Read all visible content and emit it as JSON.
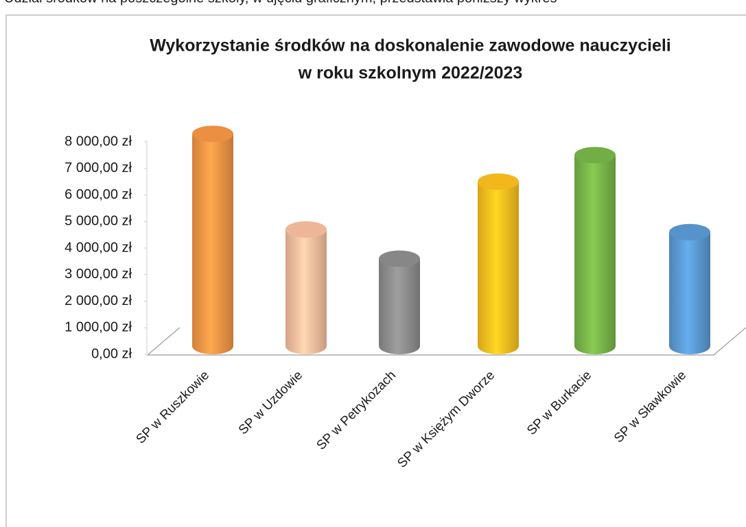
{
  "header_text": "Udział środków na poszczególne szkoły, w ujęciu graficznym, przedstawia poniższy wykres",
  "chart_data": {
    "type": "bar",
    "title": [
      "Wykorzystanie środków na doskonalenie zawodowe nauczycieli",
      "w roku szkolnym 2022/2023"
    ],
    "categories": [
      "SP w Ruszkowie",
      "SP w Uzdowie",
      "SP w Petrykozach",
      "SP w Księżym Dworze",
      "SP w Burkacie",
      "SP w Sławkowie"
    ],
    "values": [
      8300,
      4700,
      3600,
      6500,
      7500,
      4600
    ],
    "colors": [
      "#f79646",
      "#fbc0a0",
      "#8e8e8e",
      "#ffc11e",
      "#79b64a",
      "#5b9bd5"
    ],
    "ylim": [
      0,
      8500
    ],
    "yticks": [
      {
        "value": 0,
        "label": "0,00 zł"
      },
      {
        "value": 1000,
        "label": "1 000,00 zł"
      },
      {
        "value": 2000,
        "label": "2 000,00 zł"
      },
      {
        "value": 3000,
        "label": "3 000,00 zł"
      },
      {
        "value": 4000,
        "label": "4 000,00 zł"
      },
      {
        "value": 5000,
        "label": "5 000,00 zł"
      },
      {
        "value": 6000,
        "label": "6 000,00 zł"
      },
      {
        "value": 7000,
        "label": "7 000,00 zł"
      },
      {
        "value": 8000,
        "label": "8 000,00 zł"
      }
    ]
  }
}
